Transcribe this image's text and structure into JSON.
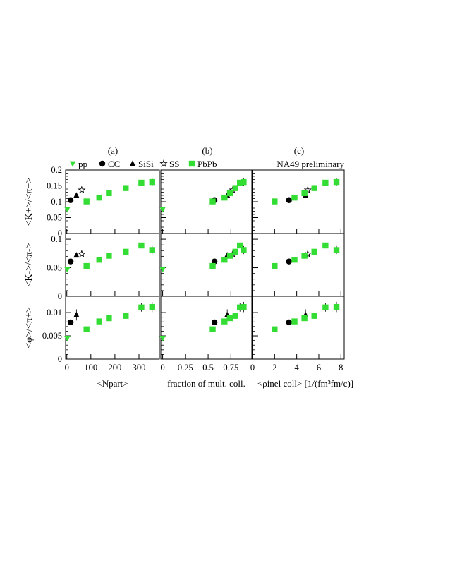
{
  "colors": {
    "pp": "#33dd33",
    "PbPb": "#33dd33",
    "CC": "#000000",
    "SiSi": "#000000",
    "SS": "#000000"
  },
  "panel_labels": [
    "(a)",
    "(b)",
    "(c)"
  ],
  "legend": [
    {
      "key": "pp",
      "label": "pp",
      "marker": "triangle-down"
    },
    {
      "key": "CC",
      "label": "CC",
      "marker": "circle"
    },
    {
      "key": "SiSi",
      "label": "SiSi",
      "marker": "triangle-up"
    },
    {
      "key": "SS",
      "label": "SS",
      "marker": "star"
    },
    {
      "key": "PbPb",
      "label": "PbPb",
      "marker": "square"
    }
  ],
  "annotation": "NA49 preliminary",
  "chart_data": {
    "type": "scatter",
    "grid": false,
    "rows": [
      {
        "ylabel": "<K+>/<π+>",
        "ylim": [
          0,
          0.2
        ],
        "yticks": [
          0,
          0.05,
          0.1,
          0.15,
          0.2
        ],
        "ytick_labels": [
          "0",
          "0.05",
          "0.1",
          "0.15",
          "0.2"
        ]
      },
      {
        "ylabel": "<K->/<π->",
        "ylim": [
          0,
          0.11
        ],
        "yticks": [
          0,
          0.05,
          0.1
        ],
        "ytick_labels": [
          "0",
          "0.05",
          "0.1"
        ]
      },
      {
        "ylabel": "<φ>/<π+>",
        "ylim": [
          0,
          0.0135
        ],
        "yticks": [
          0,
          0.005,
          0.01
        ],
        "ytick_labels": [
          "0",
          "0.005",
          "0.01"
        ]
      }
    ],
    "columns": [
      {
        "xlabel": "<Npart>",
        "xlim": [
          -5,
          385
        ],
        "xticks": [
          0,
          100,
          200,
          300
        ],
        "xtick_labels": [
          "0",
          "100",
          "200",
          "300"
        ]
      },
      {
        "xlabel": "fraction of mult. coll.",
        "xlim": [
          -0.02,
          0.98
        ],
        "xticks": [
          0,
          0.25,
          0.5,
          0.75
        ],
        "xtick_labels": [
          "0",
          "0.25",
          "0.5",
          "0.75"
        ]
      },
      {
        "xlabel": "<ρinel coll> [1/(fm³fm/c)]",
        "xlim": [
          0,
          8.3
        ],
        "xticks": [
          0,
          2,
          4,
          6,
          8
        ],
        "xtick_labels": [
          "0",
          "2",
          "4",
          "6",
          "8"
        ]
      }
    ],
    "series": [
      {
        "name": "pp",
        "marker": "triangle-down",
        "x": [
          [
            2,
            null,
            null
          ],
          [
            0.0,
            null,
            null
          ],
          [
            null,
            null,
            null
          ]
        ],
        "y": [
          [
            0.076,
            0.047,
            0.0045
          ],
          [
            0.076,
            0.047,
            0.0045
          ],
          [
            null,
            null,
            null
          ]
        ],
        "err": [
          0.004,
          0.002,
          0.0003
        ]
      },
      {
        "name": "CC",
        "marker": "circle",
        "x": [
          [
            16
          ],
          [
            0.57
          ],
          [
            3.3
          ]
        ],
        "y": [
          [
            0.105
          ],
          [
            0.061
          ],
          [
            0.0079
          ]
        ],
        "err": [
          [
            0.004
          ],
          [
            0.003
          ],
          [
            0.0004
          ]
        ]
      },
      {
        "name": "SiSi",
        "marker": "triangle-up",
        "x": [
          [
            40
          ],
          [
            0.71
          ],
          [
            4.8
          ]
        ],
        "y": [
          [
            0.12
          ],
          [
            0.072
          ],
          [
            0.0095
          ]
        ],
        "err": [
          [
            0.005
          ],
          [
            0.004
          ],
          [
            0.0012
          ]
        ]
      },
      {
        "name": "SS",
        "marker": "star",
        "x": [
          [
            62
          ],
          [
            0.77
          ],
          [
            5.0
          ]
        ],
        "y": [
          [
            0.137
          ],
          [
            0.074
          ],
          [
            null
          ]
        ],
        "err": [
          [
            0.004
          ],
          [
            0.003
          ],
          [
            null
          ]
        ]
      },
      {
        "name": "PbPb",
        "marker": "square",
        "x": [
          [
            82,
            135,
            175,
            245,
            310,
            355
          ],
          [
            0.55,
            0.68,
            0.74,
            0.8,
            0.85,
            0.89
          ],
          [
            2.0,
            3.8,
            4.7,
            5.6,
            6.6,
            7.6
          ]
        ],
        "y": [
          [
            0.101,
            0.113,
            0.127,
            0.143,
            0.16,
            0.162
          ],
          [
            0.053,
            0.064,
            0.071,
            0.078,
            0.089,
            0.081
          ],
          [
            0.0064,
            0.0081,
            0.0088,
            0.0093,
            0.0111,
            0.0112
          ]
        ],
        "err": [
          [
            0.009,
            0.006,
            0.007,
            0.007,
            0.009,
            0.013
          ],
          [
            0.004,
            0.003,
            0.003,
            0.003,
            0.005,
            0.007
          ],
          [
            0.0006,
            0.0005,
            0.0005,
            0.0006,
            0.0009,
            0.0011
          ]
        ]
      }
    ]
  }
}
